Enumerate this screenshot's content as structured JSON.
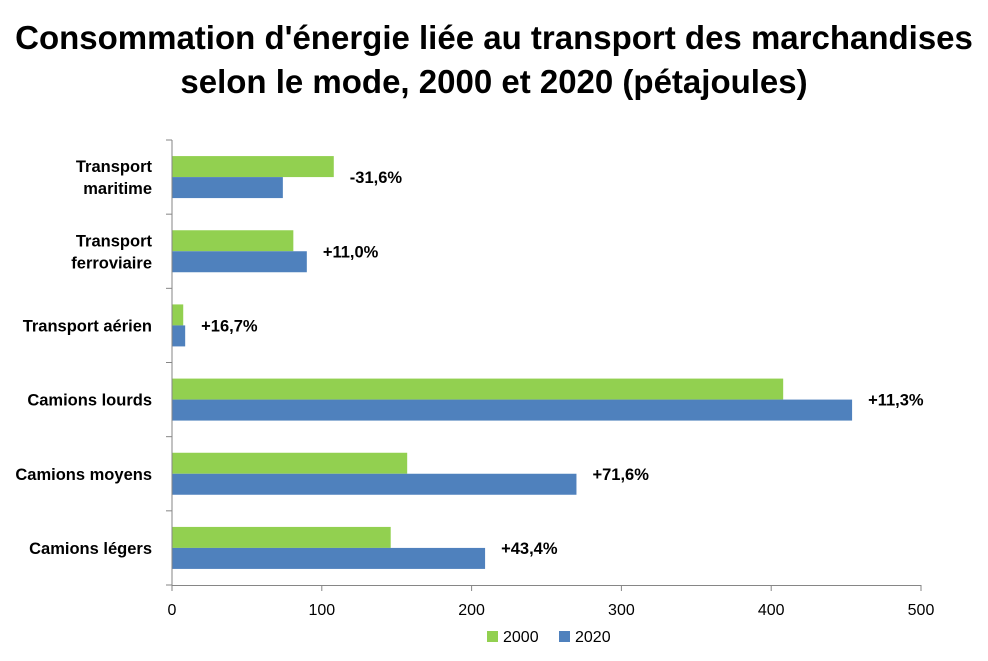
{
  "title_line1": "Consommation d'énergie liée au transport des marchandises",
  "title_line2": "selon le mode, 2000 et 2020 (pétajoules)",
  "colors": {
    "2000": "#92D050",
    "2020": "#4F81BD",
    "axis": "#868686"
  },
  "chart_data": {
    "type": "bar",
    "orientation": "horizontal",
    "title": "Consommation d'énergie liée au transport des marchandises selon le mode, 2000 et 2020 (pétajoules)",
    "categories": [
      [
        "Transport",
        "maritime"
      ],
      [
        "Transport",
        "ferroviaire"
      ],
      [
        "Transport aérien"
      ],
      [
        "Camions lourds"
      ],
      [
        "Camions moyens"
      ],
      [
        "Camions légers"
      ]
    ],
    "series": [
      {
        "name": "2000",
        "values": [
          108,
          81,
          7.5,
          408,
          157,
          146
        ]
      },
      {
        "name": "2020",
        "values": [
          74,
          90,
          8.8,
          454,
          270,
          209
        ]
      }
    ],
    "data_labels": [
      "-31,6%",
      "+11,0%",
      "+16,7%",
      "+11,3%",
      "+71,6%",
      "+43,4%"
    ],
    "xlim": [
      0,
      500
    ],
    "xticks": [
      0,
      100,
      200,
      300,
      400,
      500
    ],
    "xlabel": "",
    "ylabel": "",
    "grid": false,
    "legend_position": "bottom"
  }
}
